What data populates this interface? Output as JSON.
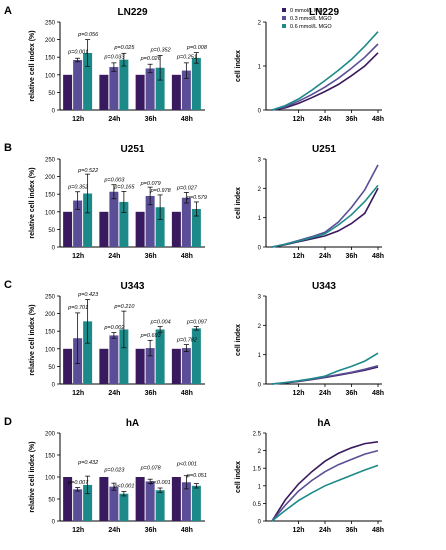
{
  "colors": {
    "mgo0": "#3a1a5e",
    "mgo03": "#5a4e96",
    "mgo06": "#1d8a8a",
    "axis": "#000000"
  },
  "legend": [
    "0 mmol/L MGO",
    "0.3 mmol/L MGO",
    "0.6 mmol/L MGO"
  ],
  "chart_data": [
    {
      "panel": "A",
      "cell_line": "LN229",
      "type": "bar",
      "title": "LN229",
      "ylabel": "relative cell index (%)",
      "ylim": [
        0,
        250
      ],
      "yticks": [
        0,
        50,
        100,
        150,
        200,
        250
      ],
      "categories": [
        "12h",
        "24h",
        "36h",
        "48h"
      ],
      "series": [
        {
          "name": "0 mmol/L MGO",
          "values": [
            100,
            100,
            100,
            100
          ],
          "errors": [
            0,
            0,
            0,
            0
          ]
        },
        {
          "name": "0.3 mmol/L MGO",
          "values": [
            142,
            122,
            118,
            112
          ],
          "errors": [
            5,
            12,
            12,
            22
          ]
        },
        {
          "name": "0.6 mmol/L MGO",
          "values": [
            162,
            143,
            120,
            148
          ],
          "errors": [
            38,
            18,
            35,
            15
          ]
        }
      ],
      "pvalues": [
        [
          {
            "text": "p=0.001",
            "value": 155
          },
          {
            "text": "p=0.056",
            "value": 205
          }
        ],
        [
          {
            "text": "p=0.033",
            "value": 140
          },
          {
            "text": "p=0.025",
            "value": 168
          }
        ],
        [
          {
            "text": "p=0.026",
            "value": 136
          },
          {
            "text": "p=0.352",
            "value": 160
          }
        ],
        [
          {
            "text": "p=0.251",
            "value": 140
          },
          {
            "text": "p=0.008",
            "value": 168
          }
        ]
      ]
    },
    {
      "panel": "A",
      "cell_line": "LN229",
      "type": "line",
      "title": "LN229",
      "ylabel": "cell index",
      "ylim": [
        0,
        2
      ],
      "yticks": [
        0,
        1,
        2
      ],
      "x_labels": [
        "12h",
        "24h",
        "36h",
        "48h"
      ],
      "x": [
        0,
        6,
        12,
        18,
        24,
        30,
        36,
        42,
        48
      ],
      "series": [
        {
          "name": "0 mmol/L MGO",
          "values": [
            0.0,
            0.05,
            0.15,
            0.28,
            0.42,
            0.58,
            0.78,
            1.0,
            1.3
          ]
        },
        {
          "name": "0.3 mmol/L MGO",
          "values": [
            0.0,
            0.07,
            0.2,
            0.35,
            0.52,
            0.72,
            0.95,
            1.2,
            1.5
          ]
        },
        {
          "name": "0.6 mmol/L MGO",
          "values": [
            0.0,
            0.1,
            0.25,
            0.45,
            0.67,
            0.9,
            1.15,
            1.45,
            1.78
          ]
        }
      ]
    },
    {
      "panel": "B",
      "cell_line": "U251",
      "type": "bar",
      "title": "U251",
      "ylabel": "relative cell index (%)",
      "ylim": [
        0,
        250
      ],
      "yticks": [
        0,
        50,
        100,
        150,
        200,
        250
      ],
      "categories": [
        "12h",
        "24h",
        "36h",
        "48h"
      ],
      "series": [
        {
          "name": "0 mmol/L MGO",
          "values": [
            100,
            100,
            100,
            100
          ],
          "errors": [
            0,
            0,
            0,
            0
          ]
        },
        {
          "name": "0.3 mmol/L MGO",
          "values": [
            132,
            157,
            145,
            140
          ],
          "errors": [
            25,
            20,
            25,
            15
          ]
        },
        {
          "name": "0.6 mmol/L MGO",
          "values": [
            152,
            128,
            113,
            108
          ],
          "errors": [
            55,
            30,
            35,
            20
          ]
        }
      ],
      "pvalues": [
        [
          {
            "text": "p=0.352",
            "value": 160
          },
          {
            "text": "p=0.522",
            "value": 208
          }
        ],
        [
          {
            "text": "p=0.003",
            "value": 180
          },
          {
            "text": "p=0.165",
            "value": 160
          }
        ],
        [
          {
            "text": "p=0.079",
            "value": 170
          },
          {
            "text": "p=0.978",
            "value": 150
          }
        ],
        [
          {
            "text": "p=0.027",
            "value": 158
          },
          {
            "text": "p=0.579",
            "value": 130
          }
        ]
      ]
    },
    {
      "panel": "B",
      "cell_line": "U251",
      "type": "line",
      "title": "U251",
      "ylabel": "cell index",
      "ylim": [
        0,
        3
      ],
      "yticks": [
        0,
        1,
        2,
        3
      ],
      "x_labels": [
        "12h",
        "24h",
        "36h",
        "48h"
      ],
      "x": [
        0,
        6,
        12,
        18,
        24,
        30,
        36,
        42,
        48
      ],
      "series": [
        {
          "name": "0 mmol/L MGO",
          "values": [
            0.0,
            0.08,
            0.18,
            0.28,
            0.38,
            0.55,
            0.8,
            1.15,
            2.0
          ]
        },
        {
          "name": "0.3 mmol/L MGO",
          "values": [
            0.0,
            0.1,
            0.22,
            0.35,
            0.5,
            0.85,
            1.35,
            1.95,
            2.8
          ]
        },
        {
          "name": "0.6 mmol/L MGO",
          "values": [
            0.0,
            0.09,
            0.2,
            0.32,
            0.45,
            0.75,
            1.1,
            1.55,
            2.1
          ]
        }
      ]
    },
    {
      "panel": "C",
      "cell_line": "U343",
      "type": "bar",
      "title": "U343",
      "ylabel": "relative cell index (%)",
      "ylim": [
        0,
        250
      ],
      "yticks": [
        0,
        50,
        100,
        150,
        200,
        250
      ],
      "categories": [
        "12h",
        "24h",
        "36h",
        "48h"
      ],
      "series": [
        {
          "name": "0 mmol/L MGO",
          "values": [
            100,
            100,
            100,
            100
          ],
          "errors": [
            0,
            0,
            0,
            0
          ]
        },
        {
          "name": "0.3 mmol/L MGO",
          "values": [
            130,
            138,
            102,
            102
          ],
          "errors": [
            72,
            8,
            22,
            10
          ]
        },
        {
          "name": "0.6 mmol/L MGO",
          "values": [
            178,
            155,
            155,
            158
          ],
          "errors": [
            62,
            52,
            8,
            5
          ]
        }
      ],
      "pvalues": [
        [
          {
            "text": "p=0.701",
            "value": 208
          },
          {
            "text": "p=0.423",
            "value": 245
          }
        ],
        [
          {
            "text": "p=0.002",
            "value": 150
          },
          {
            "text": "p=0.210",
            "value": 210
          }
        ],
        [
          {
            "text": "p=0.693",
            "value": 128
          },
          {
            "text": "p=0.004",
            "value": 166
          }
        ],
        [
          {
            "text": "p=0.782",
            "value": 115
          },
          {
            "text": "p=0.097",
            "value": 166
          }
        ]
      ]
    },
    {
      "panel": "C",
      "cell_line": "U343",
      "type": "line",
      "title": "U343",
      "ylabel": "cell index",
      "ylim": [
        0,
        3
      ],
      "yticks": [
        0,
        1,
        2,
        3
      ],
      "x_labels": [
        "12h",
        "24h",
        "36h",
        "48h"
      ],
      "x": [
        0,
        6,
        12,
        18,
        24,
        30,
        36,
        42,
        48
      ],
      "series": [
        {
          "name": "0 mmol/L MGO",
          "values": [
            0.0,
            0.04,
            0.09,
            0.15,
            0.22,
            0.3,
            0.38,
            0.47,
            0.58
          ]
        },
        {
          "name": "0.3 mmol/L MGO",
          "values": [
            0.0,
            0.04,
            0.1,
            0.16,
            0.24,
            0.32,
            0.4,
            0.5,
            0.62
          ]
        },
        {
          "name": "0.6 mmol/L MGO",
          "values": [
            0.0,
            0.05,
            0.11,
            0.18,
            0.27,
            0.45,
            0.6,
            0.78,
            1.05
          ]
        }
      ]
    },
    {
      "panel": "D",
      "cell_line": "hA",
      "type": "bar",
      "title": "hA",
      "ylabel": "relative cell index (%)",
      "ylim": [
        0,
        200
      ],
      "yticks": [
        0,
        50,
        100,
        150,
        200
      ],
      "categories": [
        "12h",
        "24h",
        "36h",
        "48h"
      ],
      "series": [
        {
          "name": "0 mmol/L MGO",
          "values": [
            100,
            100,
            100,
            100
          ],
          "errors": [
            0,
            0,
            0,
            0
          ]
        },
        {
          "name": "0.3 mmol/L MGO",
          "values": [
            72,
            78,
            90,
            88
          ],
          "errors": [
            4,
            8,
            5,
            15
          ]
        },
        {
          "name": "0.6 mmol/L MGO",
          "values": [
            82,
            62,
            70,
            80
          ],
          "errors": [
            20,
            5,
            5,
            5
          ]
        }
      ],
      "pvalues": [
        [
          {
            "text": "p=0.007",
            "value": 80
          },
          {
            "text": "p=0.432",
            "value": 125
          }
        ],
        [
          {
            "text": "p=0.023",
            "value": 108
          },
          {
            "text": "p<0.001",
            "value": 72
          }
        ],
        [
          {
            "text": "p=0.078",
            "value": 112
          },
          {
            "text": "p<0.001",
            "value": 80
          }
        ],
        [
          {
            "text": "p<0.001",
            "value": 122
          },
          {
            "text": "p=0.051",
            "value": 95
          }
        ]
      ]
    },
    {
      "panel": "D",
      "cell_line": "hA",
      "type": "line",
      "title": "hA",
      "ylabel": "cell index",
      "ylim": [
        0,
        2.5
      ],
      "yticks": [
        0.0,
        0.5,
        1.0,
        1.5,
        2.0,
        2.5
      ],
      "x_labels": [
        "12h",
        "24h",
        "36h",
        "48h"
      ],
      "x": [
        0,
        6,
        12,
        18,
        24,
        30,
        36,
        42,
        48
      ],
      "series": [
        {
          "name": "0 mmol/L MGO",
          "values": [
            0.0,
            0.6,
            1.05,
            1.4,
            1.7,
            1.92,
            2.08,
            2.2,
            2.25
          ]
        },
        {
          "name": "0.3 mmol/L MGO",
          "values": [
            0.0,
            0.45,
            0.85,
            1.15,
            1.4,
            1.6,
            1.75,
            1.9,
            2.0
          ]
        },
        {
          "name": "0.6 mmol/L MGO",
          "values": [
            0.0,
            0.3,
            0.58,
            0.8,
            1.0,
            1.15,
            1.3,
            1.45,
            1.58
          ]
        }
      ]
    }
  ]
}
